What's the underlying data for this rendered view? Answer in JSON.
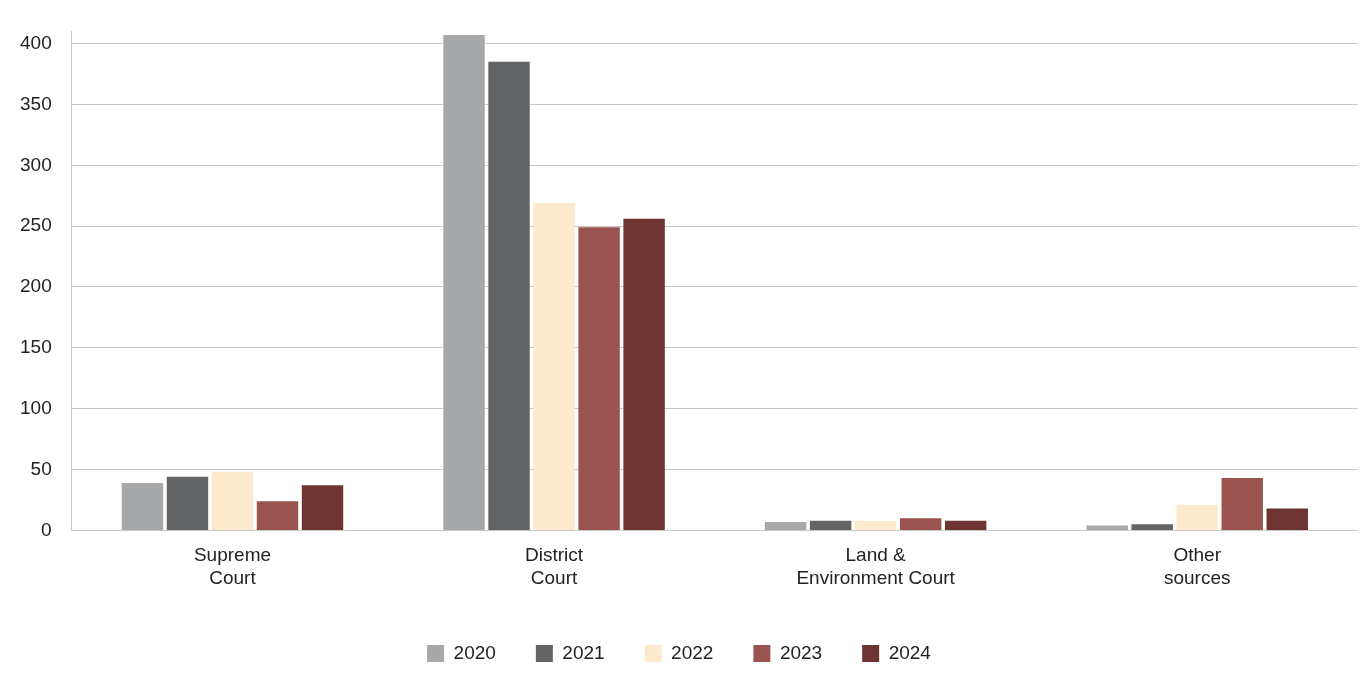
{
  "chart_data": {
    "type": "bar",
    "categories": [
      "Supreme Court",
      "District Court",
      "Land & Environment Court",
      "Other sources"
    ],
    "series": [
      {
        "name": "2020",
        "color": "#a7a8aa",
        "values": [
          39,
          407,
          7,
          4
        ]
      },
      {
        "name": "2021",
        "color": "#636466",
        "values": [
          44,
          385,
          8,
          5
        ]
      },
      {
        "name": "2022",
        "color": "#fde9cc",
        "values": [
          48,
          269,
          8,
          21
        ]
      },
      {
        "name": "2023",
        "color": "#9b534f",
        "values": [
          24,
          249,
          10,
          43
        ]
      },
      {
        "name": "2024",
        "color": "#6e3432",
        "values": [
          37,
          256,
          8,
          18
        ]
      }
    ],
    "ylim": [
      0,
      410
    ],
    "yticks": [
      0,
      50,
      100,
      150,
      200,
      250,
      300,
      350,
      400
    ],
    "grid": "y",
    "legend": "bottom"
  }
}
